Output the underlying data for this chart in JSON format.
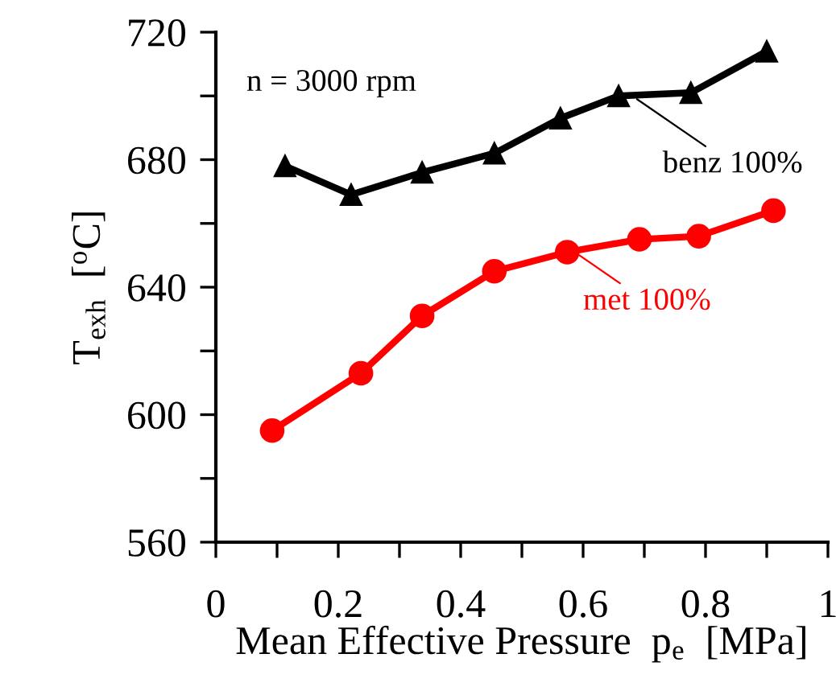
{
  "chart_data": {
    "type": "line",
    "xlabel": "Mean Effective Pressure  p$_{e}$  [MPa]",
    "ylabel": "T$_{exh}$  [$^{o}$C]",
    "annotations": [
      "n = 3000 rpm"
    ],
    "xlim": [
      0,
      1
    ],
    "xticks": [
      0,
      {
        "value": 0.1,
        "label": null
      },
      0.2,
      {
        "value": 0.3,
        "label": null
      },
      0.4,
      {
        "value": 0.5,
        "label": null
      },
      0.6,
      {
        "value": 0.7,
        "label": null
      },
      0.8,
      {
        "value": 0.9,
        "label": null
      },
      1
    ],
    "ylim": [
      560,
      720
    ],
    "yticks": [
      560,
      {
        "value": 580,
        "label": null
      },
      600,
      {
        "value": 620,
        "label": null
      },
      640,
      {
        "value": 660,
        "label": null
      },
      680,
      {
        "value": 700,
        "label": null
      },
      720
    ],
    "grid": false,
    "legend": "right",
    "line_style": "solid",
    "series": [
      {
        "name": "benz 100%",
        "color": "#000000",
        "marker": "triangle",
        "x": [
          0.113,
          0.221,
          0.337,
          0.455,
          0.563,
          0.658,
          0.776,
          0.9
        ],
        "values": [
          678,
          669,
          676,
          682,
          693,
          700,
          701,
          714
        ]
      },
      {
        "name": "met 100%",
        "color": "#ff0000",
        "marker": "circle",
        "x": [
          0.092,
          0.237,
          0.337,
          0.455,
          0.574,
          0.692,
          0.789,
          0.911
        ],
        "values": [
          595,
          613,
          631,
          645,
          651,
          655,
          656,
          664
        ]
      }
    ]
  }
}
